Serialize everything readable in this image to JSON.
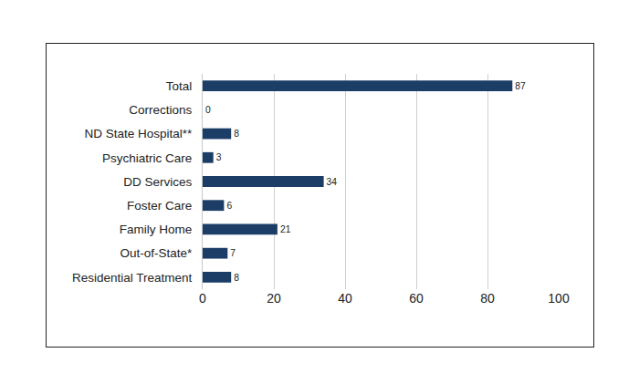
{
  "chart_data": {
    "type": "bar",
    "orientation": "horizontal",
    "categories": [
      "Total",
      "Corrections",
      "ND State Hospital**",
      "Psychiatric Care",
      "DD Services",
      "Foster Care",
      "Family Home",
      "Out-of-State*",
      "Residential Treatment"
    ],
    "values": [
      87,
      0,
      8,
      3,
      34,
      6,
      21,
      7,
      8
    ],
    "color": "#1b3d66",
    "xlim": [
      0,
      100
    ],
    "xticks": [
      0,
      20,
      40,
      60,
      80,
      100
    ],
    "grid": true,
    "data_labels": true
  }
}
